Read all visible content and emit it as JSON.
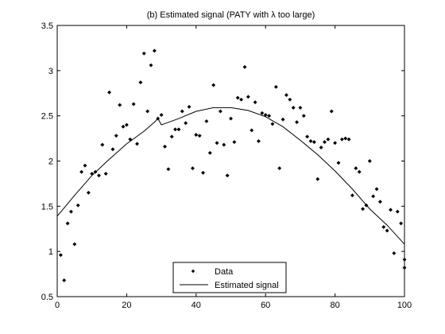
{
  "chart_data": {
    "type": "scatter",
    "title": "(b) Estimated signal (PATY with  λ too large)",
    "xlabel": "",
    "ylabel": "",
    "xlim": [
      0,
      100
    ],
    "ylim": [
      0.5,
      3.5
    ],
    "x_ticks": [
      "0",
      "20",
      "40",
      "60",
      "80",
      "100"
    ],
    "y_ticks": [
      "0.5",
      "1",
      "1.5",
      "2",
      "2.5",
      "3",
      "3.5"
    ],
    "grid": false,
    "legend_position": "bottom-center",
    "series": [
      {
        "name": "Data",
        "kind": "markers",
        "marker": "diamond",
        "color": "#000000",
        "points": [
          [
            1,
            0.96
          ],
          [
            2,
            0.68
          ],
          [
            3,
            1.31
          ],
          [
            4,
            1.44
          ],
          [
            5,
            1.08
          ],
          [
            6,
            1.51
          ],
          [
            7,
            1.88
          ],
          [
            8,
            1.95
          ],
          [
            9,
            1.65
          ],
          [
            10,
            1.86
          ],
          [
            11,
            1.88
          ],
          [
            12,
            1.84
          ],
          [
            13,
            2.18
          ],
          [
            14,
            1.86
          ],
          [
            15,
            2.76
          ],
          [
            16,
            2.13
          ],
          [
            17,
            2.28
          ],
          [
            18,
            2.62
          ],
          [
            19,
            2.38
          ],
          [
            20,
            2.4
          ],
          [
            21,
            2.24
          ],
          [
            22,
            2.63
          ],
          [
            23,
            2.19
          ],
          [
            24,
            2.87
          ],
          [
            25,
            3.19
          ],
          [
            26,
            2.55
          ],
          [
            27,
            3.06
          ],
          [
            28,
            3.22
          ],
          [
            29,
            2.47
          ],
          [
            30,
            2.51
          ],
          [
            31,
            2.16
          ],
          [
            32,
            1.91
          ],
          [
            33,
            2.27
          ],
          [
            34,
            2.35
          ],
          [
            35,
            2.35
          ],
          [
            36,
            2.55
          ],
          [
            37,
            2.42
          ],
          [
            38,
            2.6
          ],
          [
            39,
            1.92
          ],
          [
            40,
            2.29
          ],
          [
            41,
            2.28
          ],
          [
            42,
            1.87
          ],
          [
            43,
            2.44
          ],
          [
            44,
            2.09
          ],
          [
            45,
            2.84
          ],
          [
            46,
            2.2
          ],
          [
            47,
            2.55
          ],
          [
            48,
            2.18
          ],
          [
            49,
            1.84
          ],
          [
            50,
            2.47
          ],
          [
            51,
            2.21
          ],
          [
            52,
            2.7
          ],
          [
            53,
            2.68
          ],
          [
            54,
            3.04
          ],
          [
            55,
            2.71
          ],
          [
            56,
            2.34
          ],
          [
            57,
            2.65
          ],
          [
            58,
            2.22
          ],
          [
            59,
            2.53
          ],
          [
            60,
            2.51
          ],
          [
            61,
            2.5
          ],
          [
            62,
            2.41
          ],
          [
            63,
            2.82
          ],
          [
            64,
            1.92
          ],
          [
            65,
            2.46
          ],
          [
            66,
            2.73
          ],
          [
            67,
            2.68
          ],
          [
            68,
            2.59
          ],
          [
            69,
            2.43
          ],
          [
            70,
            2.59
          ],
          [
            71,
            2.5
          ],
          [
            72,
            2.27
          ],
          [
            73,
            2.22
          ],
          [
            74,
            2.21
          ],
          [
            75,
            1.8
          ],
          [
            76,
            2.15
          ],
          [
            77,
            2.21
          ],
          [
            78,
            2.24
          ],
          [
            79,
            2.55
          ],
          [
            80,
            2.2
          ],
          [
            81,
            1.98
          ],
          [
            82,
            2.24
          ],
          [
            83,
            2.25
          ],
          [
            84,
            2.24
          ],
          [
            85,
            1.62
          ],
          [
            86,
            1.92
          ],
          [
            87,
            1.88
          ],
          [
            88,
            1.47
          ],
          [
            89,
            1.51
          ],
          [
            90,
            2.0
          ],
          [
            91,
            1.61
          ],
          [
            92,
            1.69
          ],
          [
            93,
            1.55
          ],
          [
            94,
            1.27
          ],
          [
            95,
            1.23
          ],
          [
            96,
            1.46
          ],
          [
            97,
            0.98
          ],
          [
            98,
            1.44
          ],
          [
            99,
            1.31
          ],
          [
            100,
            0.82
          ],
          [
            100.5,
            0.91
          ]
        ]
      },
      {
        "name": "Estimated signal",
        "kind": "line",
        "color": "#000000",
        "points": [
          [
            0,
            1.39
          ],
          [
            5,
            1.62
          ],
          [
            10,
            1.84
          ],
          [
            15,
            2.02
          ],
          [
            20,
            2.19
          ],
          [
            25,
            2.33
          ],
          [
            28,
            2.43
          ],
          [
            29,
            2.47
          ],
          [
            30,
            2.4
          ],
          [
            35,
            2.47
          ],
          [
            40,
            2.55
          ],
          [
            45,
            2.59
          ],
          [
            50,
            2.59
          ],
          [
            55,
            2.56
          ],
          [
            60,
            2.49
          ],
          [
            65,
            2.38
          ],
          [
            70,
            2.23
          ],
          [
            75,
            2.07
          ],
          [
            80,
            1.89
          ],
          [
            85,
            1.69
          ],
          [
            90,
            1.47
          ],
          [
            95,
            1.29
          ],
          [
            100,
            1.08
          ]
        ]
      }
    ]
  }
}
